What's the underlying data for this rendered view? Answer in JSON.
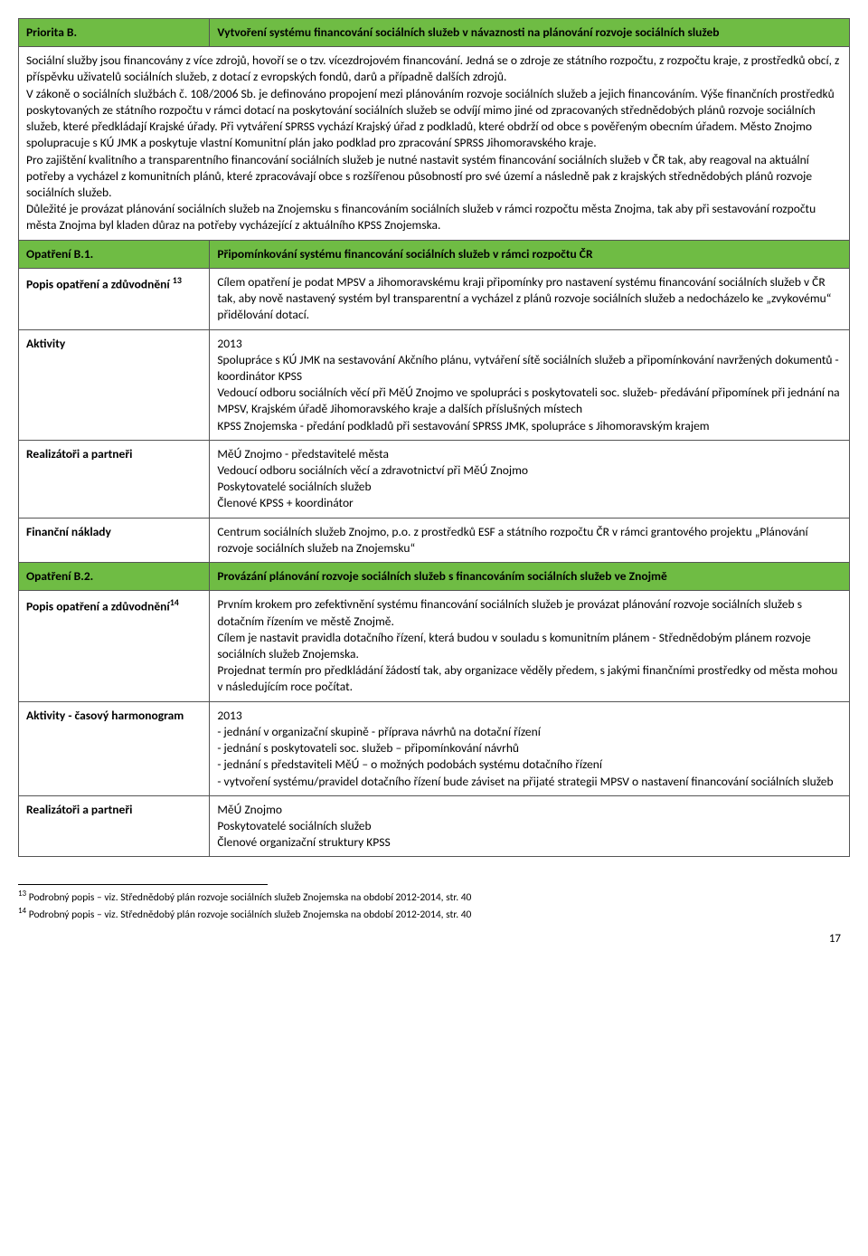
{
  "colors": {
    "header_bg": "#6fbc44",
    "border": "#555555",
    "text": "#000000",
    "page_bg": "#ffffff"
  },
  "priorityB": {
    "label": "Priorita B.",
    "title": "Vytvoření systému financování sociálních služeb v návaznosti na plánování rozvoje sociálních služeb",
    "body": "Sociální služby jsou financovány z více zdrojů, hovoří se o tzv. vícezdrojovém financování. Jedná se o zdroje ze státního rozpočtu, z rozpočtu kraje, z prostředků obcí, z příspěvku uživatelů sociálních služeb, z dotací z evropských fondů, darů a případně dalších zdrojů.\nV zákoně o sociálních službách č. 108/2006 Sb. je definováno propojení mezi plánováním rozvoje sociálních služeb a jejich financováním. Výše finančních prostředků poskytovaných ze státního rozpočtu v rámci dotací na poskytování sociálních služeb se odvíjí mimo jiné od zpracovaných střednědobých plánů rozvoje sociálních služeb, které předkládají Krajské úřady. Při vytváření SPRSS vychází Krajský úřad z podkladů, které obdrží od obce s pověřeným obecním úřadem. Město Znojmo spolupracuje s KÚ JMK a poskytuje vlastní Komunitní plán jako podklad pro zpracování SPRSS Jihomoravského kraje.\nPro zajištění kvalitního a transparentního financování sociálních služeb je nutné nastavit systém financování sociálních služeb v ČR tak, aby reagoval na aktuální potřeby a vycházel z komunitních plánů, které zpracovávají obce s rozšířenou působností pro své území a následně pak z krajských střednědobých plánů rozvoje sociálních služeb.\nDůležité je provázat plánování sociálních služeb na Znojemsku s financováním sociálních služeb v rámci rozpočtu města Znojma, tak aby při sestavování rozpočtu města Znojma byl kladen důraz na potřeby vycházející z aktuálního KPSS Znojemska."
  },
  "opB1": {
    "label": "Opatření B.1.",
    "title": "Připomínkování systému financování sociálních služeb v rámci rozpočtu ČR"
  },
  "b1_rows": {
    "popis_label": "Popis opatření a zdůvodnění ",
    "popis_sup": "13",
    "popis_text": "Cílem opatření je podat MPSV a Jihomoravskému kraji připomínky pro nastavení systému financování sociálních služeb v ČR tak, aby nově nastavený systém byl transparentní a vycházel z plánů rozvoje sociálních služeb a nedocházelo ke „zvykovému“ přidělování dotací.",
    "aktivity_label": "Aktivity",
    "aktivity_text": "2013\nSpolupráce s KÚ JMK na sestavování Akčního plánu, vytváření sítě sociálních služeb a připomínkování navržených dokumentů - koordinátor KPSS\nVedoucí odboru sociálních věcí při MěÚ Znojmo ve spolupráci s poskytovateli soc. služeb- předávání připomínek při jednání na MPSV, Krajském úřadě Jihomoravského kraje a dalších příslušných místech\nKPSS Znojemska - předání podkladů při sestavování SPRSS JMK, spolupráce s Jihomoravským krajem",
    "realiz_label": "Realizátoři a partneři",
    "realiz_text": "MěÚ Znojmo - představitelé města\nVedoucí odboru sociálních věcí a zdravotnictví při MěÚ Znojmo\nPoskytovatelé sociálních služeb\nČlenové KPSS + koordinátor",
    "fin_label": "Finanční náklady",
    "fin_text": "Centrum sociálních služeb Znojmo, p.o. z prostředků ESF a státního rozpočtu ČR v rámci grantového projektu „Plánování rozvoje sociálních služeb na Znojemsku“"
  },
  "opB2": {
    "label": "Opatření B.2.",
    "title": "Provázání plánování rozvoje sociálních služeb s financováním sociálních služeb ve Znojmě"
  },
  "b2_rows": {
    "popis_label": "Popis opatření a zdůvodnění",
    "popis_sup": "14",
    "popis_text": "Prvním krokem pro zefektivnění systému financování sociálních služeb je provázat plánování rozvoje sociálních služeb s dotačním řízením ve městě Znojmě.\nCílem je nastavit pravidla dotačního řízení, která budou v souladu s komunitním plánem - Střednědobým plánem rozvoje sociálních služeb Znojemska.\nProjednat termín pro předkládání žádostí tak, aby organizace věděly předem, s jakými finančními prostředky od města mohou v následujícím roce počítat.",
    "aktivity_label": "Aktivity - časový harmonogram",
    "aktivity_text": "2013\n- jednání v organizační skupině - příprava návrhů na dotační řízení\n- jednání s poskytovateli soc. služeb – připomínkování návrhů\n- jednání s představiteli MěÚ – o možných podobách systému dotačního řízení\n- vytvoření systému/pravidel dotačního řízení bude záviset na přijaté strategii MPSV o nastavení financování sociálních služeb",
    "realiz_label": "Realizátoři a partneři",
    "realiz_text": "MěÚ Znojmo\nPoskytovatelé sociálních služeb\nČlenové organizační struktury KPSS"
  },
  "footnotes": {
    "fn13": "Podrobný popis – viz. Střednědobý plán rozvoje sociálních služeb Znojemska na období 2012-2014, str. 40",
    "fn14": "Podrobný popis – viz. Střednědobý plán rozvoje sociálních služeb Znojemska na období 2012-2014, str. 40"
  },
  "page_number": "17"
}
